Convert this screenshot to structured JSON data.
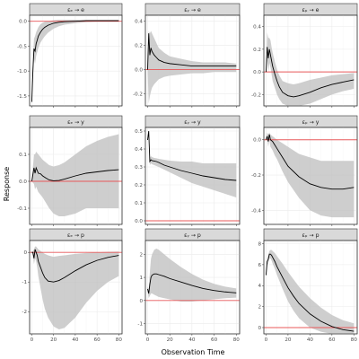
{
  "axis_titles": {
    "x": "Observation Time",
    "y": "Response"
  },
  "colors": {
    "band": "#bdbdbd",
    "response_line": "#000000",
    "zero_line": "#e8585a",
    "strip": "#d9d9d9"
  },
  "chart_data": [
    {
      "type": "line",
      "panel_title": "εₑ → e",
      "xlim": [
        -2,
        83
      ],
      "ylim": [
        -1.7,
        0.12
      ],
      "x_ticks": [
        0,
        20,
        40,
        60,
        80
      ],
      "y_ticks": [
        0.0,
        -0.5,
        -1.0,
        -1.5
      ],
      "y_tick_labels": [
        "0.0",
        "-0.5",
        "-1.0",
        "-1.5"
      ],
      "series": [
        {
          "x": [
            0,
            1,
            2,
            3,
            4,
            5,
            6,
            7,
            8,
            10,
            12,
            15,
            20,
            25,
            30,
            40,
            50,
            60,
            70,
            80
          ],
          "y": [
            -1.62,
            -1.0,
            -0.55,
            -0.6,
            -0.45,
            -0.38,
            -0.3,
            -0.26,
            -0.22,
            -0.16,
            -0.12,
            -0.08,
            -0.04,
            -0.02,
            -0.01,
            0.0,
            0.01,
            0.01,
            0.01,
            0.01
          ]
        }
      ],
      "band_upper": [
        -1.55,
        -0.8,
        -0.35,
        -0.3,
        -0.22,
        -0.17,
        -0.12,
        -0.09,
        -0.06,
        -0.03,
        -0.01,
        0.0,
        0.02,
        0.03,
        0.03,
        0.03,
        0.03,
        0.03,
        0.03,
        0.03
      ],
      "band_lower": [
        -1.62,
        -1.2,
        -0.75,
        -0.85,
        -0.7,
        -0.62,
        -0.54,
        -0.48,
        -0.43,
        -0.36,
        -0.3,
        -0.23,
        -0.15,
        -0.1,
        -0.07,
        -0.04,
        -0.02,
        -0.01,
        -0.01,
        -0.01
      ]
    },
    {
      "type": "line",
      "panel_title": "εᵧ → e",
      "xlim": [
        -2,
        83
      ],
      "ylim": [
        -0.3,
        0.45
      ],
      "x_ticks": [
        0,
        20,
        40,
        60,
        80
      ],
      "y_ticks": [
        0.4,
        0.2,
        0.0,
        -0.2
      ],
      "y_tick_labels": [
        "0.4",
        "0.2",
        "0.0",
        "-0.2"
      ],
      "series": [
        {
          "x": [
            0,
            1,
            2,
            3,
            4,
            6,
            8,
            10,
            15,
            20,
            30,
            40,
            50,
            60,
            70,
            80
          ],
          "y": [
            0.0,
            0.3,
            0.12,
            0.18,
            0.15,
            0.12,
            0.1,
            0.08,
            0.06,
            0.05,
            0.04,
            0.03,
            0.03,
            0.03,
            0.03,
            0.03
          ]
        }
      ],
      "band_upper": [
        0.0,
        0.32,
        0.3,
        0.32,
        0.3,
        0.26,
        0.22,
        0.18,
        0.14,
        0.11,
        0.09,
        0.07,
        0.06,
        0.06,
        0.06,
        0.05
      ],
      "band_lower": [
        0.0,
        -0.28,
        -0.22,
        -0.18,
        -0.15,
        -0.12,
        -0.1,
        -0.08,
        -0.06,
        -0.05,
        -0.04,
        -0.03,
        -0.03,
        -0.02,
        -0.02,
        -0.02
      ]
    },
    {
      "type": "line",
      "panel_title": "εₚ → e",
      "xlim": [
        -2,
        83
      ],
      "ylim": [
        -0.3,
        0.5
      ],
      "x_ticks": [
        0,
        20,
        40,
        60,
        80
      ],
      "y_ticks": [
        0.4,
        0.2,
        0.0,
        -0.2
      ],
      "y_tick_labels": [
        "0.4",
        "0.2",
        "0.0",
        "-0.2"
      ],
      "series": [
        {
          "x": [
            0,
            1,
            2,
            3,
            4,
            5,
            6,
            8,
            10,
            12,
            15,
            20,
            25,
            30,
            40,
            50,
            60,
            70,
            80
          ],
          "y": [
            0.0,
            0.22,
            0.12,
            0.2,
            0.15,
            0.1,
            0.05,
            -0.02,
            -0.08,
            -0.13,
            -0.18,
            -0.21,
            -0.22,
            -0.21,
            -0.18,
            -0.14,
            -0.11,
            -0.09,
            -0.07
          ]
        }
      ],
      "band_upper": [
        0.0,
        0.35,
        0.3,
        0.3,
        0.28,
        0.22,
        0.17,
        0.09,
        0.02,
        -0.03,
        -0.08,
        -0.1,
        -0.11,
        -0.1,
        -0.07,
        -0.05,
        -0.03,
        -0.02,
        -0.01
      ],
      "band_lower": [
        0.0,
        0.1,
        0.0,
        0.08,
        0.04,
        -0.02,
        -0.08,
        -0.14,
        -0.2,
        -0.24,
        -0.28,
        -0.3,
        -0.3,
        -0.3,
        -0.28,
        -0.24,
        -0.2,
        -0.17,
        -0.15
      ]
    },
    {
      "type": "line",
      "panel_title": "εₑ → y",
      "xlim": [
        -2,
        83
      ],
      "ylim": [
        -0.16,
        0.2
      ],
      "x_ticks": [
        0,
        20,
        40,
        60,
        80
      ],
      "y_ticks": [
        0.1,
        0.0,
        -0.1
      ],
      "y_tick_labels": [
        "0.1",
        "0.0",
        "-0.1"
      ],
      "series": [
        {
          "x": [
            0,
            2,
            3,
            4,
            6,
            8,
            10,
            13,
            16,
            20,
            25,
            30,
            40,
            50,
            60,
            70,
            80
          ],
          "y": [
            0.0,
            0.05,
            0.03,
            0.05,
            0.03,
            0.028,
            0.02,
            0.012,
            0.005,
            0.002,
            0.003,
            0.008,
            0.02,
            0.03,
            0.035,
            0.04,
            0.043
          ]
        }
      ],
      "band_upper": [
        0.0,
        0.1,
        0.1,
        0.11,
        0.1,
        0.09,
        0.08,
        0.07,
        0.06,
        0.055,
        0.06,
        0.07,
        0.1,
        0.13,
        0.15,
        0.165,
        0.175
      ],
      "band_lower": [
        0.0,
        -0.01,
        -0.03,
        -0.02,
        -0.04,
        -0.05,
        -0.06,
        -0.08,
        -0.1,
        -0.12,
        -0.13,
        -0.13,
        -0.12,
        -0.1,
        -0.1,
        -0.1,
        -0.1
      ]
    },
    {
      "type": "line",
      "panel_title": "εᵧ → y",
      "xlim": [
        -2,
        83
      ],
      "ylim": [
        -0.02,
        0.52
      ],
      "x_ticks": [
        0,
        20,
        40,
        60,
        80
      ],
      "y_ticks": [
        0.5,
        0.4,
        0.3,
        0.2,
        0.1,
        0.0
      ],
      "y_tick_labels": [
        "0.5",
        "0.4",
        "0.3",
        "0.2",
        "0.1",
        "0.0"
      ],
      "series": [
        {
          "x": [
            0,
            1,
            2,
            3,
            4,
            6,
            8,
            10,
            15,
            20,
            30,
            40,
            50,
            60,
            70,
            80
          ],
          "y": [
            0.45,
            0.5,
            0.33,
            0.34,
            0.335,
            0.333,
            0.33,
            0.325,
            0.31,
            0.3,
            0.28,
            0.265,
            0.25,
            0.24,
            0.23,
            0.225
          ]
        }
      ],
      "band_upper": [
        0.45,
        0.5,
        0.35,
        0.36,
        0.355,
        0.35,
        0.348,
        0.345,
        0.34,
        0.335,
        0.33,
        0.33,
        0.32,
        0.32,
        0.32,
        0.32
      ],
      "band_lower": [
        0.45,
        0.5,
        0.31,
        0.32,
        0.315,
        0.31,
        0.305,
        0.3,
        0.285,
        0.27,
        0.24,
        0.21,
        0.19,
        0.17,
        0.15,
        0.13
      ]
    },
    {
      "type": "line",
      "panel_title": "εₚ → y",
      "xlim": [
        -2,
        83
      ],
      "ylim": [
        -0.48,
        0.07
      ],
      "x_ticks": [
        0,
        20,
        40,
        60,
        80
      ],
      "y_ticks": [
        0.0,
        -0.2,
        -0.4
      ],
      "y_tick_labels": [
        "0.0",
        "-0.2",
        "-0.4"
      ],
      "series": [
        {
          "x": [
            0,
            1,
            2,
            3,
            4,
            6,
            8,
            10,
            15,
            20,
            30,
            40,
            50,
            60,
            70,
            80
          ],
          "y": [
            0.0,
            0.02,
            -0.01,
            0.03,
            0.0,
            -0.01,
            -0.03,
            -0.05,
            -0.1,
            -0.15,
            -0.21,
            -0.25,
            -0.27,
            -0.28,
            -0.28,
            -0.27
          ]
        }
      ],
      "band_upper": [
        0.0,
        0.04,
        0.03,
        0.04,
        0.03,
        0.02,
        0.01,
        0.0,
        -0.02,
        -0.04,
        -0.08,
        -0.1,
        -0.12,
        -0.12,
        -0.12,
        -0.12
      ],
      "band_lower": [
        0.0,
        0.0,
        -0.04,
        0.0,
        -0.04,
        -0.06,
        -0.09,
        -0.11,
        -0.18,
        -0.24,
        -0.33,
        -0.4,
        -0.43,
        -0.44,
        -0.44,
        -0.44
      ]
    },
    {
      "type": "line",
      "panel_title": "εₑ → p",
      "xlim": [
        -2,
        83
      ],
      "ylim": [
        -2.75,
        0.4
      ],
      "x_ticks": [
        0,
        20,
        40,
        60,
        80
      ],
      "y_ticks": [
        0,
        -1,
        -2
      ],
      "y_tick_labels": [
        "0",
        "-1",
        "-2"
      ],
      "series": [
        {
          "x": [
            0,
            1,
            2,
            3,
            4,
            5,
            6,
            8,
            10,
            12,
            15,
            20,
            25,
            30,
            40,
            50,
            60,
            70,
            80
          ],
          "y": [
            0.0,
            0.0,
            -0.2,
            0.1,
            0.0,
            -0.1,
            -0.3,
            -0.5,
            -0.7,
            -0.85,
            -0.97,
            -1.0,
            -0.95,
            -0.85,
            -0.62,
            -0.42,
            -0.27,
            -0.17,
            -0.1
          ]
        }
      ],
      "band_upper": [
        0.0,
        0.05,
        0.1,
        0.2,
        0.2,
        0.15,
        0.1,
        0.05,
        0.0,
        -0.05,
        -0.1,
        -0.15,
        -0.12,
        -0.1,
        -0.05,
        -0.02,
        0.0,
        0.02,
        0.03
      ],
      "band_lower": [
        0.0,
        -0.1,
        -0.4,
        -0.2,
        -0.3,
        -0.5,
        -0.8,
        -1.2,
        -1.6,
        -1.9,
        -2.2,
        -2.5,
        -2.6,
        -2.55,
        -2.2,
        -1.7,
        -1.3,
        -1.0,
        -0.8
      ]
    },
    {
      "type": "line",
      "panel_title": "εᵧ → p",
      "xlim": [
        -2,
        83
      ],
      "ylim": [
        -1.45,
        2.6
      ],
      "x_ticks": [
        0,
        20,
        40,
        60,
        80
      ],
      "y_ticks": [
        2,
        1,
        0,
        -1
      ],
      "y_tick_labels": [
        "2",
        "1",
        "0",
        "-1"
      ],
      "series": [
        {
          "x": [
            0,
            1,
            2,
            3,
            4,
            6,
            8,
            10,
            15,
            20,
            30,
            40,
            50,
            60,
            70,
            80
          ],
          "y": [
            0.5,
            0.3,
            0.7,
            1.0,
            1.1,
            1.15,
            1.15,
            1.12,
            1.05,
            0.95,
            0.8,
            0.65,
            0.52,
            0.43,
            0.37,
            0.33
          ]
        }
      ],
      "band_upper": [
        0.6,
        0.5,
        1.2,
        1.8,
        2.0,
        2.2,
        2.25,
        2.2,
        2.0,
        1.8,
        1.45,
        1.15,
        0.9,
        0.72,
        0.6,
        0.52
      ],
      "band_lower": [
        0.4,
        0.1,
        0.2,
        0.3,
        0.3,
        0.25,
        0.2,
        0.15,
        0.1,
        0.05,
        -0.05,
        -0.05,
        0.0,
        0.05,
        0.1,
        0.12
      ]
    },
    {
      "type": "line",
      "panel_title": "εₚ → p",
      "xlim": [
        -2,
        83
      ],
      "ylim": [
        -0.6,
        8.3
      ],
      "x_ticks": [
        0,
        20,
        40,
        60,
        80
      ],
      "y_ticks": [
        8,
        6,
        4,
        2,
        0
      ],
      "y_tick_labels": [
        "8",
        "6",
        "4",
        "2",
        "0"
      ],
      "series": [
        {
          "x": [
            0,
            1,
            2,
            3,
            4,
            5,
            6,
            8,
            10,
            15,
            20,
            25,
            30,
            40,
            50,
            60,
            70,
            80
          ],
          "y": [
            5.0,
            6.3,
            6.5,
            7.0,
            7.0,
            6.9,
            6.7,
            6.3,
            5.8,
            4.8,
            3.8,
            3.0,
            2.3,
            1.3,
            0.6,
            0.1,
            -0.2,
            -0.35
          ]
        }
      ],
      "band_upper": [
        5.0,
        6.6,
        6.9,
        7.3,
        7.4,
        7.4,
        7.3,
        7.1,
        6.8,
        6.1,
        5.3,
        4.6,
        3.9,
        2.8,
        1.9,
        1.2,
        0.7,
        0.4
      ],
      "band_lower": [
        5.0,
        6.0,
        6.1,
        6.6,
        6.6,
        6.4,
        6.1,
        5.6,
        5.0,
        3.7,
        2.5,
        1.6,
        0.9,
        0.0,
        -0.4,
        -0.6,
        -0.6,
        -0.6
      ]
    }
  ]
}
